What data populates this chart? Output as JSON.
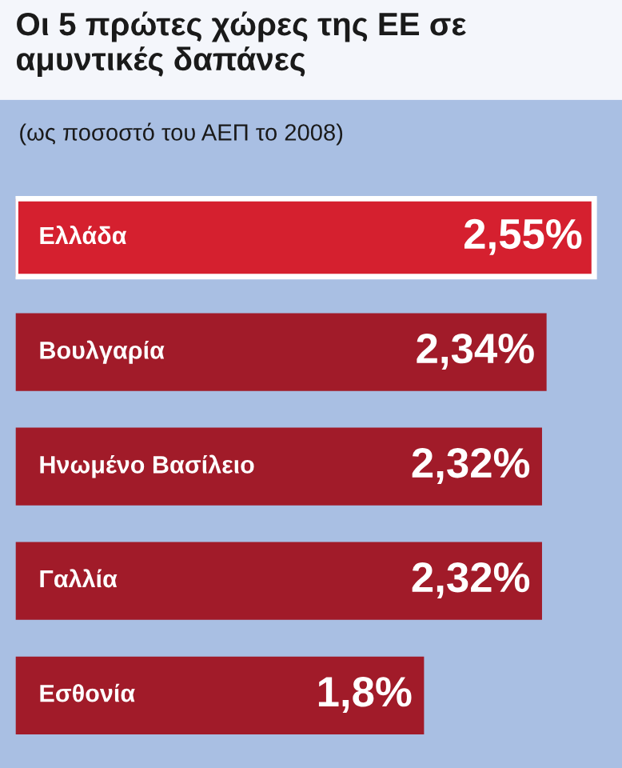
{
  "chart_data": {
    "type": "bar",
    "orientation": "horizontal",
    "title": "Οι 5 πρώτες χώρες της ΕΕ σε αμυντικές δαπάνες",
    "subtitle": "(ως ποσοστό του ΑΕΠ το 2008)",
    "categories": [
      "Ελλάδα",
      "Βουλγαρία",
      "Ηνωμένο Βασίλειο",
      "Γαλλία",
      "Εσθονία"
    ],
    "values": [
      2.55,
      2.34,
      2.32,
      2.32,
      1.8
    ],
    "value_labels": [
      "2,55%",
      "2,34%",
      "2,32%",
      "2,32%",
      "1,8%"
    ],
    "colors": [
      "#d5202f",
      "#a11b29",
      "#a11b29",
      "#a11b29",
      "#a11b29"
    ],
    "legend": false
  }
}
